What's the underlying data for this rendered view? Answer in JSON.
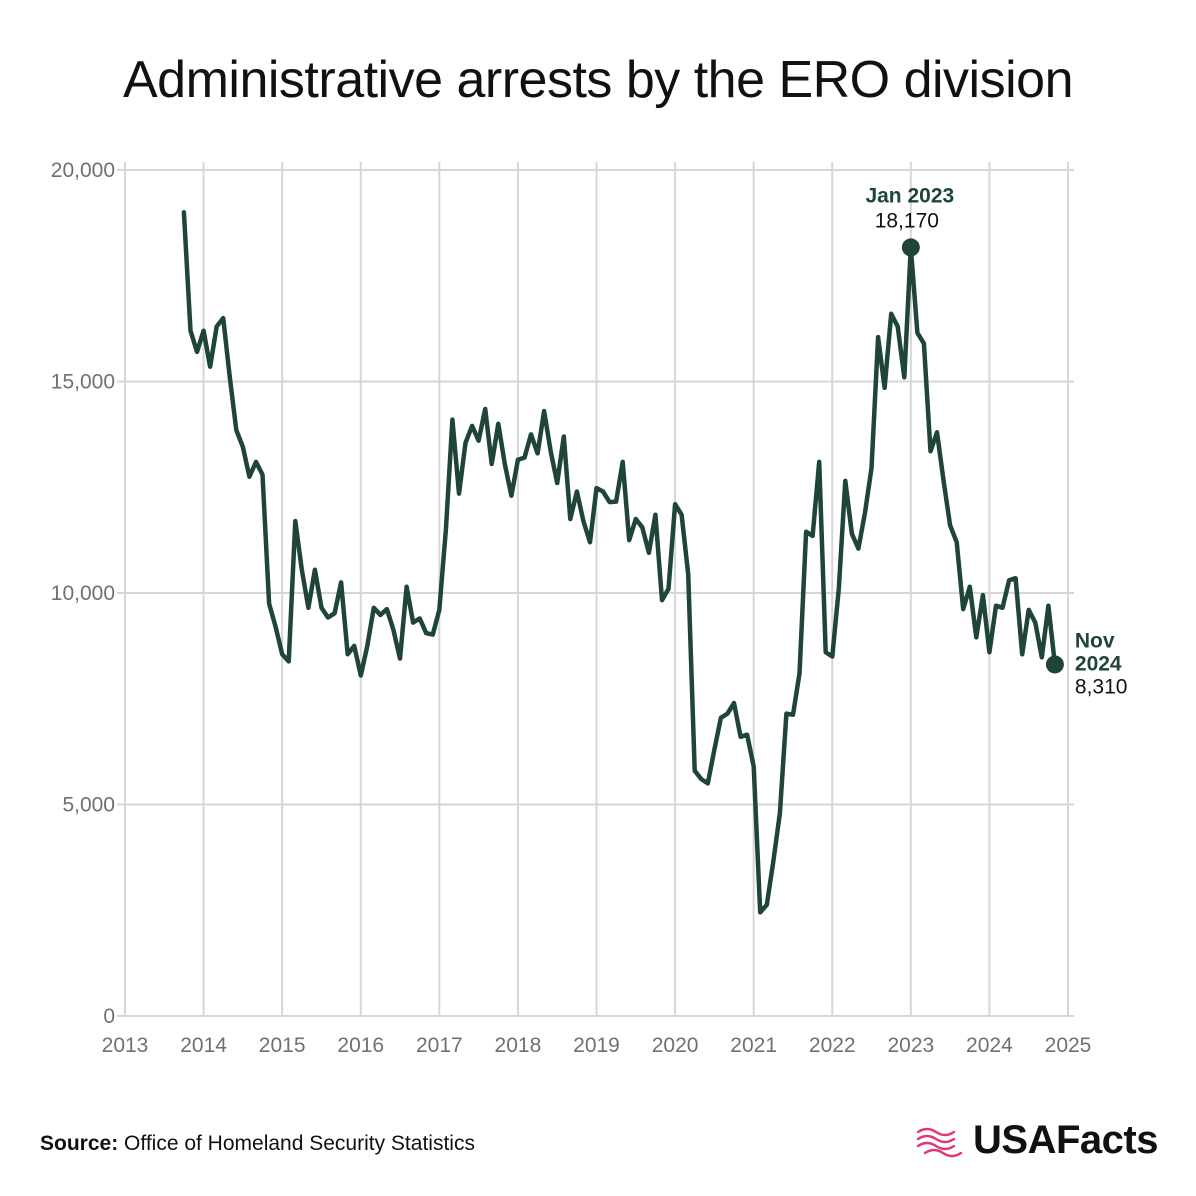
{
  "title": "Administrative arrests by the ERO division",
  "source": {
    "label": "Source:",
    "text": "Office of Homeland Security Statistics"
  },
  "brand": {
    "name": "USAFacts",
    "line_color": "#1f4538",
    "accent": "#e0357a"
  },
  "chart_data": {
    "type": "line",
    "title": "Administrative arrests by the ERO division",
    "xlabel": "",
    "ylabel": "",
    "xlim": [
      2013,
      2025
    ],
    "ylim": [
      0,
      20000
    ],
    "grid": true,
    "x_ticks": [
      2013,
      2014,
      2015,
      2016,
      2017,
      2018,
      2019,
      2020,
      2021,
      2022,
      2023,
      2024,
      2025
    ],
    "y_ticks": [
      0,
      5000,
      10000,
      15000,
      20000
    ],
    "y_tick_labels": [
      "0",
      "5,000",
      "10,000",
      "15,000",
      "20,000"
    ],
    "series": [
      {
        "name": "Administrative arrests",
        "start": "2013-10",
        "values": [
          19000,
          16200,
          15700,
          16200,
          15350,
          16300,
          16500,
          15100,
          13850,
          13450,
          12750,
          13100,
          12800,
          9750,
          9200,
          8550,
          8380,
          11700,
          10550,
          9650,
          10550,
          9650,
          9420,
          9520,
          10250,
          8550,
          8750,
          8050,
          8750,
          9650,
          9480,
          9620,
          9120,
          8450,
          10150,
          9300,
          9400,
          9050,
          9020,
          9600,
          11500,
          14100,
          12350,
          13550,
          13950,
          13600,
          14350,
          13050,
          14000,
          13050,
          12300,
          13150,
          13200,
          13750,
          13300,
          14300,
          13350,
          12600,
          13700,
          11750,
          12400,
          11700,
          11200,
          12480,
          12400,
          12150,
          12160,
          13100,
          11250,
          11750,
          11550,
          10950,
          11850,
          9830,
          10100,
          12100,
          11850,
          10450,
          5800,
          5600,
          5500,
          6300,
          7050,
          7150,
          7400,
          6600,
          6650,
          5900,
          2450,
          2630,
          3650,
          4800,
          7150,
          7120,
          8100,
          11450,
          11350,
          13100,
          8600,
          8500,
          10100,
          12650,
          11400,
          11050,
          11900,
          12950,
          16050,
          14850,
          16600,
          16300,
          15100,
          18170,
          16150,
          15900,
          13350,
          13800,
          12650,
          11600,
          11200,
          9620,
          10150,
          8950,
          9950,
          8600,
          9700,
          9650,
          10300,
          10350,
          8550,
          9600,
          9300,
          8480,
          9700,
          8310
        ]
      }
    ],
    "annotations": [
      {
        "label": "Jan 2023",
        "value_label": "18,170",
        "date": "2023-01",
        "value": 18170
      },
      {
        "label": "Nov 2024",
        "label_lines": [
          "Nov",
          "2024"
        ],
        "value_label": "8,310",
        "date": "2024-11",
        "value": 8310
      }
    ]
  }
}
